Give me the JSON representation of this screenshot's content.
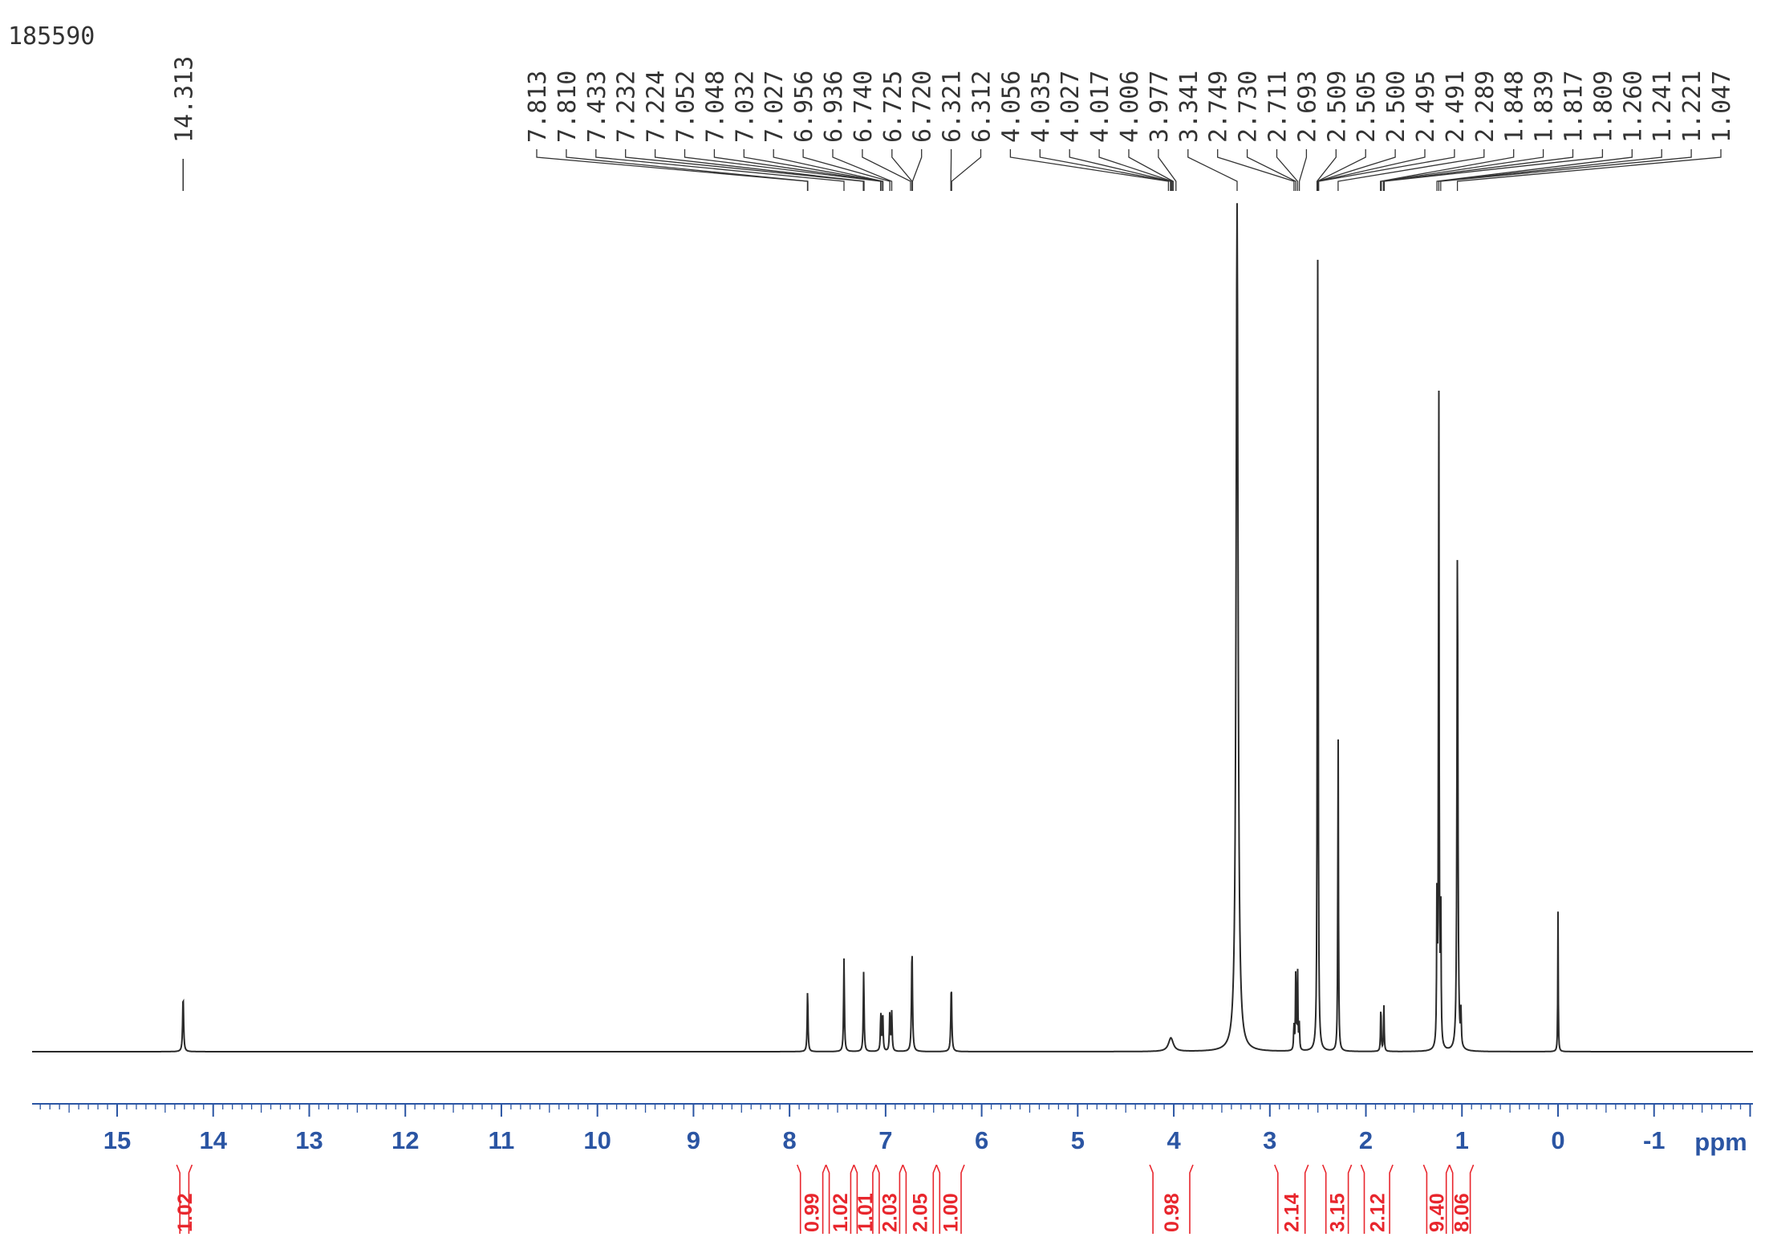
{
  "sample_id": "185590",
  "colors": {
    "trace": "#2a2a2a",
    "axis": "#2b55a3",
    "integral": "#e8262d",
    "labels": "#333333"
  },
  "chart_data": {
    "type": "line",
    "title": "",
    "xlabel": "ppm",
    "ylabel": "",
    "xlim": [
      16.0,
      -2.0
    ],
    "x_reversed": true,
    "ticks": [
      "15",
      "14",
      "13",
      "12",
      "11",
      "10",
      "9",
      "8",
      "7",
      "6",
      "5",
      "4",
      "3",
      "2",
      "1",
      "0",
      "-1"
    ],
    "peak_labels_left": [
      "14.313"
    ],
    "peak_labels_right": [
      "7.813",
      "7.810",
      "7.433",
      "7.232",
      "7.224",
      "7.052",
      "7.048",
      "7.032",
      "7.027",
      "6.956",
      "6.936",
      "6.740",
      "6.725",
      "6.720",
      "6.321",
      "6.312",
      "4.056",
      "4.035",
      "4.027",
      "4.017",
      "4.006",
      "3.977",
      "3.341",
      "2.749",
      "2.730",
      "2.711",
      "2.693",
      "2.509",
      "2.505",
      "2.500",
      "2.495",
      "2.491",
      "2.289",
      "1.848",
      "1.839",
      "1.817",
      "1.809",
      "1.260",
      "1.241",
      "1.221",
      "1.047"
    ],
    "peaks": [
      {
        "ppm": 14.313,
        "height": 0.066,
        "width": 0.006
      },
      {
        "ppm": 7.812,
        "height": 0.073,
        "width": 0.005
      },
      {
        "ppm": 7.433,
        "height": 0.11,
        "width": 0.005
      },
      {
        "ppm": 7.228,
        "height": 0.095,
        "width": 0.005
      },
      {
        "ppm": 7.05,
        "height": 0.044,
        "width": 0.005
      },
      {
        "ppm": 7.03,
        "height": 0.046,
        "width": 0.005
      },
      {
        "ppm": 6.956,
        "height": 0.046,
        "width": 0.005
      },
      {
        "ppm": 6.936,
        "height": 0.046,
        "width": 0.005
      },
      {
        "ppm": 6.725,
        "height": 0.122,
        "width": 0.006
      },
      {
        "ppm": 6.316,
        "height": 0.078,
        "width": 0.006
      },
      {
        "ppm": 4.03,
        "height": 0.016,
        "width": 0.03
      },
      {
        "ppm": 3.341,
        "height": 1.0,
        "width": 0.012
      },
      {
        "ppm": 2.749,
        "height": 0.03,
        "width": 0.004
      },
      {
        "ppm": 2.73,
        "height": 0.095,
        "width": 0.004
      },
      {
        "ppm": 2.711,
        "height": 0.095,
        "width": 0.004
      },
      {
        "ppm": 2.693,
        "height": 0.03,
        "width": 0.004
      },
      {
        "ppm": 2.5,
        "height": 0.86,
        "width": 0.004
      },
      {
        "ppm": 2.505,
        "height": 0.3,
        "width": 0.004
      },
      {
        "ppm": 2.289,
        "height": 0.375,
        "width": 0.004
      },
      {
        "ppm": 1.844,
        "height": 0.055,
        "width": 0.004
      },
      {
        "ppm": 1.813,
        "height": 0.055,
        "width": 0.004
      },
      {
        "ppm": 1.26,
        "height": 0.18,
        "width": 0.004
      },
      {
        "ppm": 1.241,
        "height": 0.79,
        "width": 0.004
      },
      {
        "ppm": 1.221,
        "height": 0.18,
        "width": 0.004
      },
      {
        "ppm": 1.047,
        "height": 0.6,
        "width": 0.006
      },
      {
        "ppm": 1.01,
        "height": 0.04,
        "width": 0.004
      },
      {
        "ppm": 0.0,
        "height": 0.165,
        "width": 0.003
      }
    ],
    "integrals": [
      {
        "value": "1.02",
        "from": 14.38,
        "to": 14.22
      },
      {
        "value": "0.99",
        "from": 7.92,
        "to": 7.62
      },
      {
        "value": "1.02",
        "from": 7.62,
        "to": 7.33
      },
      {
        "value": "1.01",
        "from": 7.33,
        "to": 7.1
      },
      {
        "value": "2.03",
        "from": 7.1,
        "to": 6.82
      },
      {
        "value": "2.05",
        "from": 6.82,
        "to": 6.47
      },
      {
        "value": "1.00",
        "from": 6.47,
        "to": 6.18
      },
      {
        "value": "0.98",
        "from": 4.25,
        "to": 3.8
      },
      {
        "value": "2.14",
        "from": 2.95,
        "to": 2.6
      },
      {
        "value": "3.15",
        "from": 2.45,
        "to": 2.15
      },
      {
        "value": "2.12",
        "from": 2.05,
        "to": 1.72
      },
      {
        "value": "9.40",
        "from": 1.4,
        "to": 1.13
      },
      {
        "value": "8.06",
        "from": 1.13,
        "to": 0.88
      }
    ]
  }
}
